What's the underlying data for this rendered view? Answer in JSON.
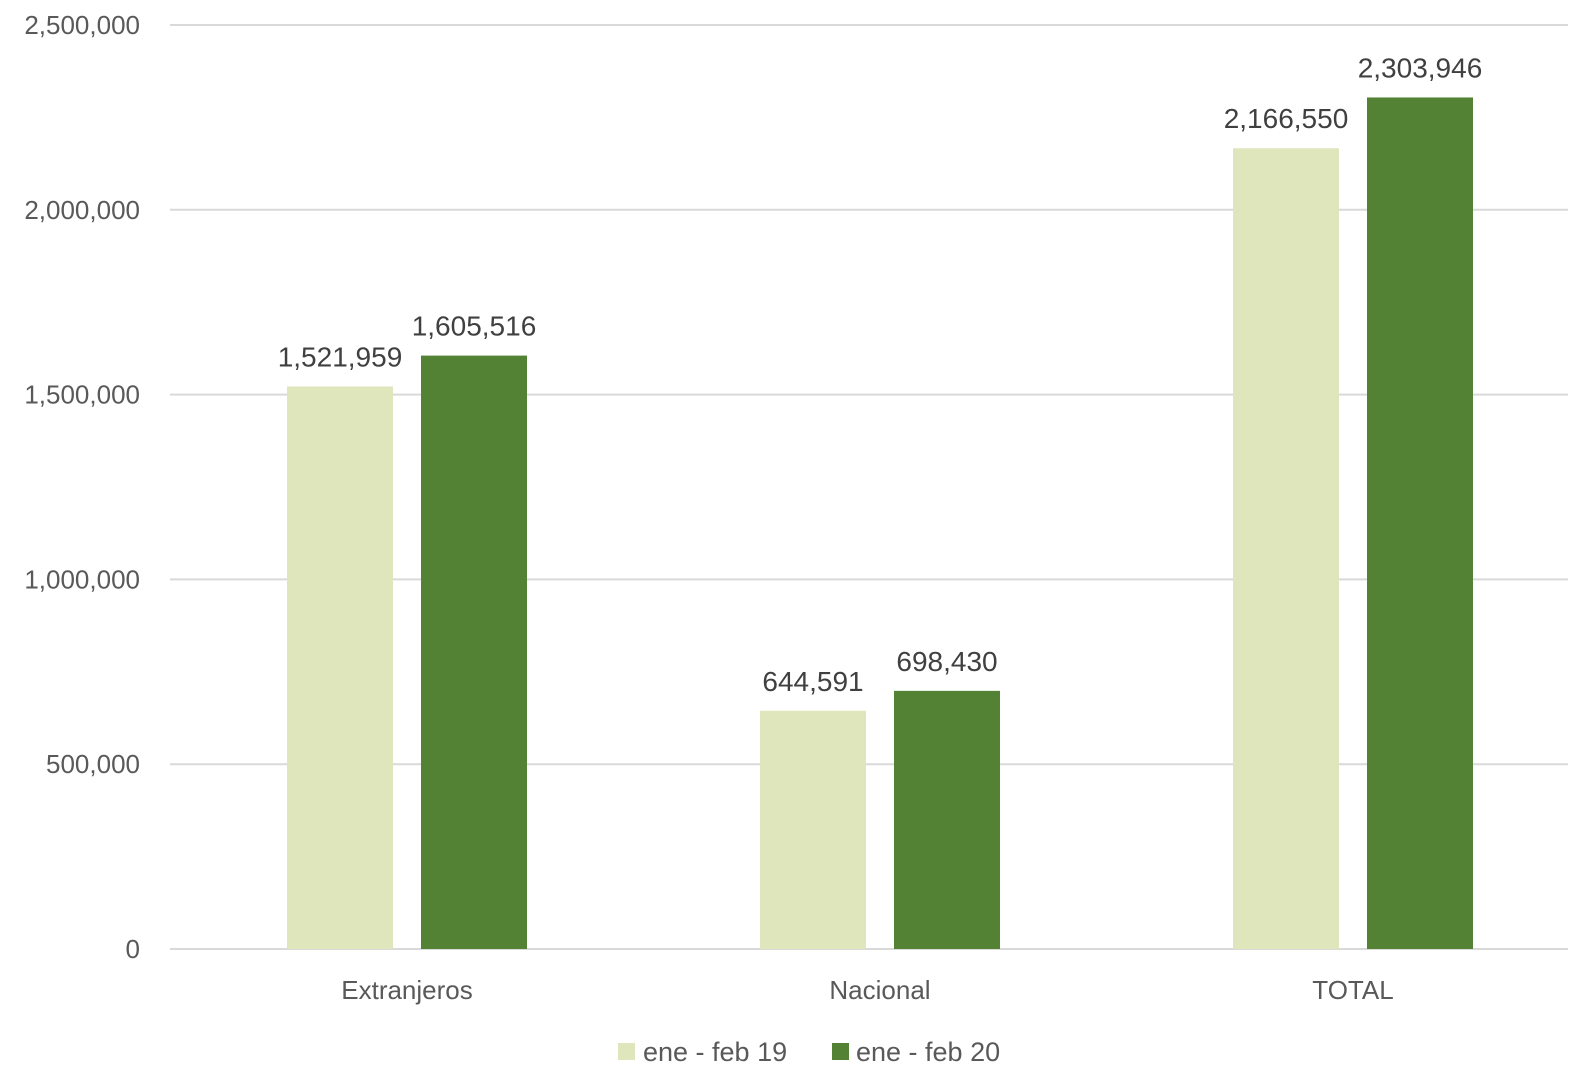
{
  "chart_data": {
    "type": "bar",
    "title": "",
    "xlabel": "",
    "ylabel": "",
    "categories": [
      "Extranjeros",
      "Nacional",
      "TOTAL"
    ],
    "series": [
      {
        "name": "ene - feb 19",
        "color": "#dfe6bc",
        "values": [
          1521959,
          644591,
          2166550
        ],
        "labels": [
          "1,521,959",
          "644,591",
          "2,166,550"
        ]
      },
      {
        "name": "ene - feb 20",
        "color": "#548235",
        "values": [
          1605516,
          698430,
          2303946
        ],
        "labels": [
          "1,605,516",
          "698,430",
          "2,303,946"
        ]
      }
    ],
    "ylim": [
      0,
      2500000
    ],
    "yticks": [
      0,
      500000,
      1000000,
      1500000,
      2000000,
      2500000
    ],
    "ytick_labels": [
      "0",
      "500,000",
      "1,000,000",
      "1,500,000",
      "2,000,000",
      "2,500,000"
    ],
    "grid": true,
    "gridline_color": "#d9d9d9",
    "legend_position": "bottom"
  }
}
